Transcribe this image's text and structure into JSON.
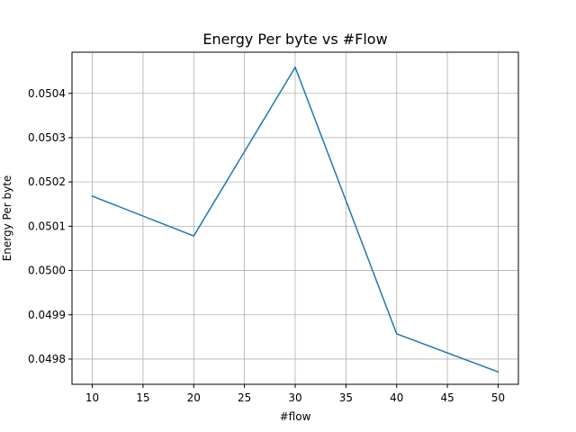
{
  "chart_data": {
    "type": "line",
    "title": "Energy Per byte vs #Flow",
    "xlabel": "#flow",
    "ylabel": "Energy Per byte",
    "x": [
      10,
      20,
      30,
      40,
      50
    ],
    "series": [
      {
        "values": [
          0.050168,
          0.050078,
          0.050459,
          0.049857,
          0.049771
        ]
      }
    ],
    "xlim": [
      8,
      52
    ],
    "ylim": [
      0.049743,
      0.050493
    ],
    "xticks": [
      10,
      15,
      20,
      25,
      30,
      35,
      40,
      45,
      50
    ],
    "xtick_labels": [
      "10",
      "15",
      "20",
      "25",
      "30",
      "35",
      "40",
      "45",
      "50"
    ],
    "yticks": [
      0.0498,
      0.0499,
      0.05,
      0.0501,
      0.0502,
      0.0503,
      0.0504
    ],
    "ytick_labels": [
      "0.0498",
      "0.0499",
      "0.0500",
      "0.0501",
      "0.0502",
      "0.0503",
      "0.0504"
    ],
    "grid": true,
    "line_color": "#1f77b4"
  }
}
